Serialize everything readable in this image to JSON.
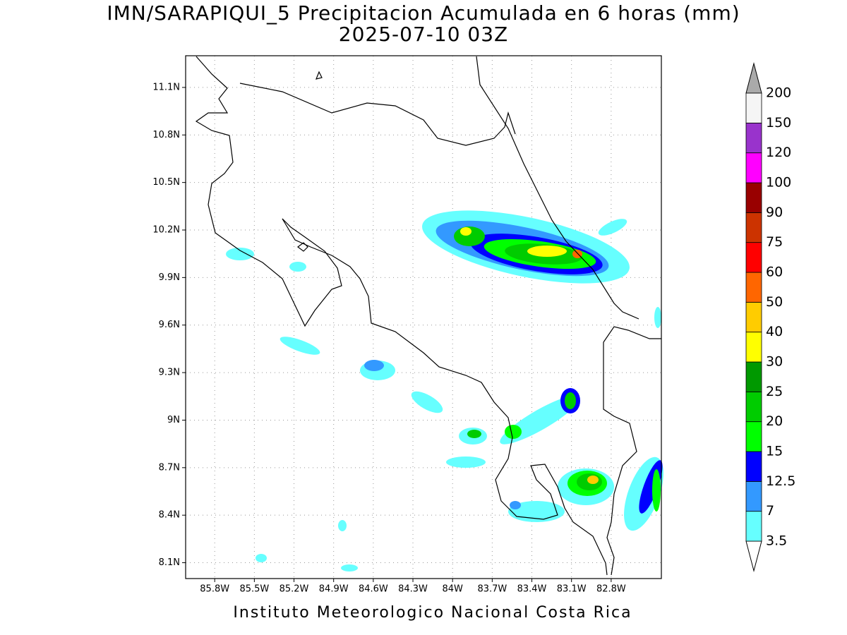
{
  "chart_data": {
    "type": "map",
    "title": "IMN/SARAPIQUI_5 Precipitacion Acumulada en 6 horas (mm)",
    "subtitle": "2025-07-10 03Z",
    "credit": "Instituto Meteorologico Nacional Costa Rica",
    "xlim": [
      -86.02,
      -82.42
    ],
    "ylim": [
      8.0,
      11.3
    ],
    "xticks": [
      {
        "value": -85.8,
        "label": "85.8W"
      },
      {
        "value": -85.5,
        "label": "85.5W"
      },
      {
        "value": -85.2,
        "label": "85.2W"
      },
      {
        "value": -84.9,
        "label": "84.9W"
      },
      {
        "value": -84.6,
        "label": "84.6W"
      },
      {
        "value": -84.3,
        "label": "84.3W"
      },
      {
        "value": -84.0,
        "label": "84W"
      },
      {
        "value": -83.7,
        "label": "83.7W"
      },
      {
        "value": -83.4,
        "label": "83.4W"
      },
      {
        "value": -83.1,
        "label": "83.1W"
      },
      {
        "value": -82.8,
        "label": "82.8W"
      }
    ],
    "yticks": [
      {
        "value": 8.1,
        "label": "8.1N"
      },
      {
        "value": 8.4,
        "label": "8.4N"
      },
      {
        "value": 8.7,
        "label": "8.7N"
      },
      {
        "value": 9.0,
        "label": "9N"
      },
      {
        "value": 9.3,
        "label": "9.3N"
      },
      {
        "value": 9.6,
        "label": "9.6N"
      },
      {
        "value": 9.9,
        "label": "9.9N"
      },
      {
        "value": 10.2,
        "label": "10.2N"
      },
      {
        "value": 10.5,
        "label": "10.5N"
      },
      {
        "value": 10.8,
        "label": "10.8N"
      },
      {
        "value": 11.1,
        "label": "11.1N"
      }
    ],
    "grid": true,
    "colorbar": {
      "levels": [
        3.5,
        7,
        12.5,
        15,
        20,
        25,
        30,
        40,
        50,
        60,
        75,
        90,
        100,
        120,
        150,
        200
      ],
      "colors": [
        "#66ffff",
        "#3399ff",
        "#0000ff",
        "#00ff00",
        "#00cc00",
        "#009900",
        "#ffff00",
        "#ffcc00",
        "#ff6600",
        "#ff0000",
        "#cc3300",
        "#990000",
        "#ff00ff",
        "#9933cc",
        "#f5f5f5"
      ],
      "under_color": "#ffffff",
      "over_color": "#aaaaaa"
    }
  }
}
